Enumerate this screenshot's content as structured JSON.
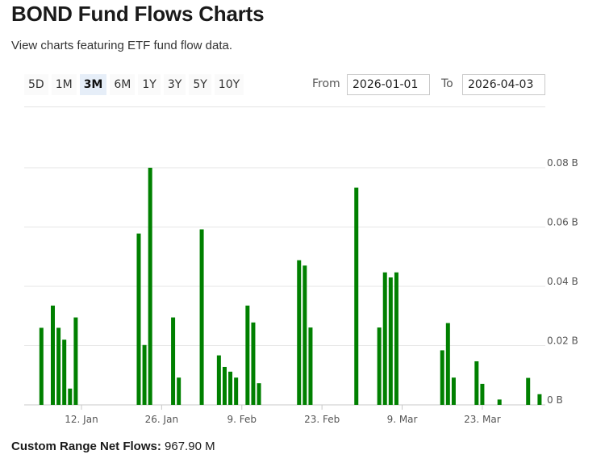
{
  "page": {
    "title": "BOND Fund Flows Charts",
    "subtitle": "View charts featuring ETF fund flow data."
  },
  "range_buttons": [
    {
      "label": "5D",
      "active": false
    },
    {
      "label": "1M",
      "active": false
    },
    {
      "label": "3M",
      "active": true
    },
    {
      "label": "6M",
      "active": false
    },
    {
      "label": "1Y",
      "active": false
    },
    {
      "label": "3Y",
      "active": false
    },
    {
      "label": "5Y",
      "active": false
    },
    {
      "label": "10Y",
      "active": false
    }
  ],
  "date_range": {
    "from_label": "From",
    "from_value": "2026-01-01",
    "to_label": "To",
    "to_value": "2026-04-03"
  },
  "footer": {
    "label": "Custom Range Net Flows:",
    "value": "967.90 M"
  },
  "colors": {
    "bar": "#008000",
    "grid": "#e6e6e6",
    "active_range": "#e6eef8"
  },
  "chart_data": {
    "type": "bar",
    "title": "",
    "xlabel": "",
    "ylabel": "",
    "unit": "B",
    "ylim": [
      0,
      0.08
    ],
    "grid": true,
    "y_ticks": [
      {
        "value": 0,
        "label": "0 B"
      },
      {
        "value": 0.02,
        "label": "0.02 B"
      },
      {
        "value": 0.04,
        "label": "0.04 B"
      },
      {
        "value": 0.06,
        "label": "0.06 B"
      },
      {
        "value": 0.08,
        "label": "0.08 B"
      }
    ],
    "x_ticks": [
      {
        "date": "2026-01-12",
        "label": "12. Jan"
      },
      {
        "date": "2026-01-26",
        "label": "26. Jan"
      },
      {
        "date": "2026-02-09",
        "label": "9. Feb"
      },
      {
        "date": "2026-02-23",
        "label": "23. Feb"
      },
      {
        "date": "2026-03-09",
        "label": "9. Mar"
      },
      {
        "date": "2026-03-23",
        "label": "23. Mar"
      }
    ],
    "x_range": [
      "2026-01-02",
      "2026-04-03"
    ],
    "series": [
      {
        "values": [
          {
            "date": "2026-01-05",
            "value": 0.026
          },
          {
            "date": "2026-01-07",
            "value": 0.0335
          },
          {
            "date": "2026-01-08",
            "value": 0.026
          },
          {
            "date": "2026-01-09",
            "value": 0.022
          },
          {
            "date": "2026-01-10",
            "value": 0.0055
          },
          {
            "date": "2026-01-11",
            "value": 0.0295
          },
          {
            "date": "2026-01-22",
            "value": 0.0578
          },
          {
            "date": "2026-01-23",
            "value": 0.0202
          },
          {
            "date": "2026-01-24",
            "value": 0.08
          },
          {
            "date": "2026-01-28",
            "value": 0.0295
          },
          {
            "date": "2026-01-29",
            "value": 0.0092
          },
          {
            "date": "2026-02-02",
            "value": 0.0592
          },
          {
            "date": "2026-02-05",
            "value": 0.0167
          },
          {
            "date": "2026-02-06",
            "value": 0.0128
          },
          {
            "date": "2026-02-07",
            "value": 0.0112
          },
          {
            "date": "2026-02-08",
            "value": 0.0092
          },
          {
            "date": "2026-02-10",
            "value": 0.0335
          },
          {
            "date": "2026-02-11",
            "value": 0.0278
          },
          {
            "date": "2026-02-12",
            "value": 0.0073
          },
          {
            "date": "2026-02-19",
            "value": 0.0488
          },
          {
            "date": "2026-02-20",
            "value": 0.047
          },
          {
            "date": "2026-02-21",
            "value": 0.0261
          },
          {
            "date": "2026-03-01",
            "value": 0.0733
          },
          {
            "date": "2026-03-05",
            "value": 0.0261
          },
          {
            "date": "2026-03-06",
            "value": 0.0447
          },
          {
            "date": "2026-03-07",
            "value": 0.043
          },
          {
            "date": "2026-03-08",
            "value": 0.0447
          },
          {
            "date": "2026-03-16",
            "value": 0.0184
          },
          {
            "date": "2026-03-17",
            "value": 0.0276
          },
          {
            "date": "2026-03-18",
            "value": 0.0092
          },
          {
            "date": "2026-03-22",
            "value": 0.0147
          },
          {
            "date": "2026-03-23",
            "value": 0.0071
          },
          {
            "date": "2026-03-26",
            "value": 0.0018
          },
          {
            "date": "2026-03-31",
            "value": 0.0091
          },
          {
            "date": "2026-04-02",
            "value": 0.0036
          }
        ]
      }
    ]
  }
}
